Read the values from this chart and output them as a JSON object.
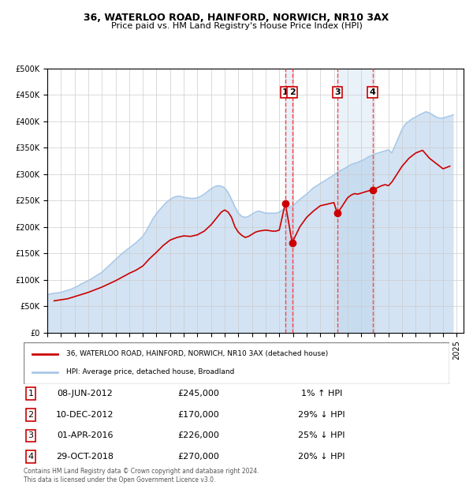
{
  "title": "36, WATERLOO ROAD, HAINFORD, NORWICH, NR10 3AX",
  "subtitle": "Price paid vs. HM Land Registry's House Price Index (HPI)",
  "ylabel_ticks": [
    "£0",
    "£50K",
    "£100K",
    "£150K",
    "£200K",
    "£250K",
    "£300K",
    "£350K",
    "£400K",
    "£450K",
    "£500K"
  ],
  "ytick_values": [
    0,
    50000,
    100000,
    150000,
    200000,
    250000,
    300000,
    350000,
    400000,
    450000,
    500000
  ],
  "xlim_start": 1995.0,
  "xlim_end": 2025.5,
  "ylim": [
    0,
    500000
  ],
  "transactions": [
    {
      "id": 1,
      "date_num": 2012.44,
      "price": 245000,
      "label": "1",
      "date_str": "08-JUN-2012",
      "pct": "1%",
      "dir": "↑"
    },
    {
      "id": 2,
      "date_num": 2012.94,
      "price": 170000,
      "label": "2",
      "date_str": "10-DEC-2012",
      "pct": "29%",
      "dir": "↓"
    },
    {
      "id": 3,
      "date_num": 2016.25,
      "price": 226000,
      "label": "3",
      "date_str": "01-APR-2016",
      "pct": "25%",
      "dir": "↓"
    },
    {
      "id": 4,
      "date_num": 2018.83,
      "price": 270000,
      "label": "4",
      "date_str": "29-OCT-2018",
      "pct": "20%",
      "dir": "↓"
    }
  ],
  "hpi_color": "#a8c8e8",
  "price_color": "#cc0000",
  "transaction_color": "#cc0000",
  "vline_color": "#ff4444",
  "background_color": "#ffffff",
  "grid_color": "#cccccc",
  "legend_entry1": "36, WATERLOO ROAD, HAINFORD, NORWICH, NR10 3AX (detached house)",
  "legend_entry2": "HPI: Average price, detached house, Broadland",
  "footer": "Contains HM Land Registry data © Crown copyright and database right 2024.\nThis data is licensed under the Open Government Licence v3.0.",
  "hpi_data_x": [
    1995.0,
    1995.25,
    1995.5,
    1995.75,
    1996.0,
    1996.25,
    1996.5,
    1996.75,
    1997.0,
    1997.25,
    1997.5,
    1997.75,
    1998.0,
    1998.25,
    1998.5,
    1998.75,
    1999.0,
    1999.25,
    1999.5,
    1999.75,
    2000.0,
    2000.25,
    2000.5,
    2000.75,
    2001.0,
    2001.25,
    2001.5,
    2001.75,
    2002.0,
    2002.25,
    2002.5,
    2002.75,
    2003.0,
    2003.25,
    2003.5,
    2003.75,
    2004.0,
    2004.25,
    2004.5,
    2004.75,
    2005.0,
    2005.25,
    2005.5,
    2005.75,
    2006.0,
    2006.25,
    2006.5,
    2006.75,
    2007.0,
    2007.25,
    2007.5,
    2007.75,
    2008.0,
    2008.25,
    2008.5,
    2008.75,
    2009.0,
    2009.25,
    2009.5,
    2009.75,
    2010.0,
    2010.25,
    2010.5,
    2010.75,
    2011.0,
    2011.25,
    2011.5,
    2011.75,
    2012.0,
    2012.25,
    2012.5,
    2012.75,
    2013.0,
    2013.25,
    2013.5,
    2013.75,
    2014.0,
    2014.25,
    2014.5,
    2014.75,
    2015.0,
    2015.25,
    2015.5,
    2015.75,
    2016.0,
    2016.25,
    2016.5,
    2016.75,
    2017.0,
    2017.25,
    2017.5,
    2017.75,
    2018.0,
    2018.25,
    2018.5,
    2018.75,
    2019.0,
    2019.25,
    2019.5,
    2019.75,
    2020.0,
    2020.25,
    2020.5,
    2020.75,
    2021.0,
    2021.25,
    2021.5,
    2021.75,
    2022.0,
    2022.25,
    2022.5,
    2022.75,
    2023.0,
    2023.25,
    2023.5,
    2023.75,
    2024.0,
    2024.25,
    2024.5,
    2024.75
  ],
  "hpi_data_y": [
    72000,
    73000,
    74500,
    75000,
    76000,
    78000,
    80000,
    82000,
    85000,
    88000,
    92000,
    95000,
    98000,
    102000,
    106000,
    110000,
    114000,
    120000,
    126000,
    132000,
    138000,
    144000,
    150000,
    155000,
    160000,
    165000,
    170000,
    176000,
    182000,
    192000,
    204000,
    216000,
    225000,
    233000,
    240000,
    247000,
    252000,
    256000,
    258000,
    258000,
    256000,
    255000,
    254000,
    254000,
    255000,
    258000,
    262000,
    267000,
    272000,
    276000,
    278000,
    277000,
    274000,
    265000,
    252000,
    238000,
    226000,
    220000,
    218000,
    220000,
    224000,
    228000,
    230000,
    228000,
    226000,
    226000,
    226000,
    226000,
    228000,
    232000,
    235000,
    237000,
    240000,
    246000,
    252000,
    257000,
    262000,
    268000,
    274000,
    278000,
    282000,
    286000,
    290000,
    294000,
    298000,
    303000,
    307000,
    310000,
    314000,
    318000,
    320000,
    322000,
    325000,
    328000,
    332000,
    335000,
    338000,
    340000,
    342000,
    344000,
    346000,
    340000,
    355000,
    370000,
    385000,
    395000,
    400000,
    405000,
    408000,
    412000,
    415000,
    418000,
    416000,
    412000,
    408000,
    406000,
    406000,
    408000,
    410000,
    412000
  ],
  "price_data_x": [
    1995.5,
    1996.0,
    1996.5,
    1997.0,
    1997.5,
    1998.0,
    1998.5,
    1999.0,
    1999.5,
    2000.0,
    2000.5,
    2001.0,
    2001.5,
    2002.0,
    2002.5,
    2003.0,
    2003.5,
    2004.0,
    2004.5,
    2005.0,
    2005.5,
    2006.0,
    2006.5,
    2007.0,
    2007.5,
    2007.75,
    2008.0,
    2008.25,
    2008.5,
    2008.75,
    2009.0,
    2009.25,
    2009.5,
    2009.75,
    2010.0,
    2010.25,
    2010.5,
    2010.75,
    2011.0,
    2011.25,
    2011.5,
    2011.75,
    2012.0,
    2012.44,
    2012.94,
    2013.5,
    2014.0,
    2014.5,
    2015.0,
    2015.5,
    2016.0,
    2016.25,
    2016.5,
    2017.0,
    2017.25,
    2017.5,
    2017.75,
    2018.0,
    2018.25,
    2018.5,
    2018.83,
    2019.0,
    2019.25,
    2019.5,
    2019.75,
    2020.0,
    2020.25,
    2020.5,
    2020.75,
    2021.0,
    2021.5,
    2022.0,
    2022.5,
    2023.0,
    2023.5,
    2024.0,
    2024.5
  ],
  "price_data_y": [
    60000,
    62000,
    64000,
    68000,
    72000,
    76000,
    81000,
    86000,
    92000,
    98000,
    105000,
    112000,
    118000,
    126000,
    140000,
    152000,
    165000,
    175000,
    180000,
    183000,
    182000,
    185000,
    192000,
    204000,
    220000,
    228000,
    232000,
    228000,
    218000,
    200000,
    190000,
    184000,
    180000,
    182000,
    186000,
    190000,
    192000,
    193000,
    194000,
    193000,
    192000,
    192000,
    194000,
    245000,
    170000,
    200000,
    218000,
    230000,
    240000,
    243000,
    246000,
    226000,
    235000,
    255000,
    260000,
    263000,
    262000,
    264000,
    266000,
    268000,
    270000,
    272000,
    275000,
    278000,
    280000,
    278000,
    285000,
    295000,
    305000,
    315000,
    330000,
    340000,
    345000,
    330000,
    320000,
    310000,
    315000
  ]
}
